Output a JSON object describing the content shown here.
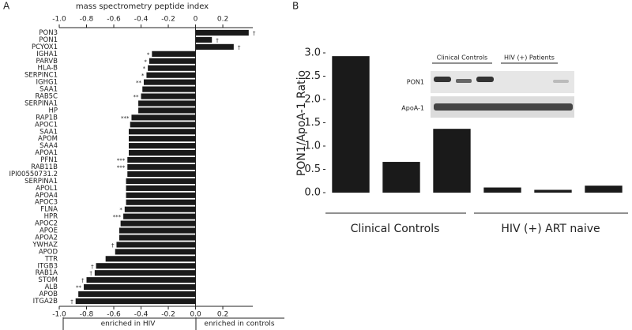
{
  "chart_data": [
    {
      "type": "barh",
      "label": "A",
      "title": "mass spectrometry peptide index",
      "categories": [
        "PON3",
        "PON1",
        "PCYOX1",
        "IGHA1",
        "PARVB",
        "HLA-B",
        "SERPINC1",
        "IGHG1",
        "SAA1",
        "RAB5C",
        "SERPINA1",
        "HP",
        "RAP1B",
        "APOC1",
        "SAA1",
        "APOM",
        "SAA4",
        "APOA1",
        "PFN1",
        "RAB11B",
        "IPI00550731.2",
        "SERPINA1",
        "APOL1",
        "APOA4",
        "APOC3",
        "FLNA",
        "HPR",
        "APOC2",
        "APOE",
        "APOA2",
        "YWHAZ",
        "APOD",
        "TTR",
        "ITGB3",
        "RAB1A",
        "STOM",
        "ALB",
        "APOB",
        "ITGA2B"
      ],
      "values": [
        0.39,
        0.12,
        0.28,
        -0.32,
        -0.34,
        -0.35,
        -0.36,
        -0.38,
        -0.39,
        -0.4,
        -0.42,
        -0.42,
        -0.47,
        -0.48,
        -0.49,
        -0.49,
        -0.49,
        -0.49,
        -0.5,
        -0.5,
        -0.5,
        -0.51,
        -0.51,
        -0.51,
        -0.51,
        -0.52,
        -0.53,
        -0.55,
        -0.56,
        -0.56,
        -0.58,
        -0.59,
        -0.66,
        -0.73,
        -0.74,
        -0.8,
        -0.82,
        -0.86,
        -0.88
      ],
      "markers": [
        "†",
        "†",
        "†",
        "*",
        "*",
        "*",
        "*",
        "**",
        null,
        "**",
        null,
        null,
        "***",
        null,
        null,
        null,
        null,
        null,
        "***",
        "***",
        null,
        null,
        null,
        null,
        null,
        "*",
        "***",
        null,
        null,
        null,
        "†",
        null,
        null,
        "†",
        "†",
        "†",
        "**",
        null,
        "†"
      ],
      "color": "#1a1a1a",
      "xlim": [
        -1.0,
        0.42
      ],
      "xticks": [
        {
          "value": -1.0,
          "label": "-1.0"
        },
        -0.8,
        -0.6,
        -0.4,
        -0.2,
        {
          "value": 0,
          "label": "0.0"
        },
        0.2
      ],
      "x2ticks": [
        {
          "value": -1.0,
          "label": "-1.0"
        },
        -0.8,
        -0.6,
        -0.4,
        -0.2,
        0,
        0.2
      ],
      "region_labels": [
        "enriched in HIV",
        "enriched in controls"
      ]
    },
    {
      "type": "bar",
      "label": "B",
      "ylabel": "PON1/ApoA-1 Ratio",
      "categories": [
        null,
        null,
        null,
        null,
        null,
        null
      ],
      "values": [
        2.93,
        0.66,
        1.37,
        0.11,
        0.06,
        0.15
      ],
      "color": "#1a1a1a",
      "ylim": [
        0,
        3.0
      ],
      "yticks": [
        {
          "value": 0,
          "label": "0.0"
        },
        0.5,
        {
          "value": 1,
          "label": "1.0"
        },
        1.5,
        {
          "value": 2,
          "label": "2.0"
        },
        2.5,
        {
          "value": 3,
          "label": "3.0"
        }
      ],
      "groups": [
        "Clinical Controls",
        "HIV (+) ART naive"
      ],
      "inset": {
        "groups": [
          "Clinical Controls",
          "HIV (+) Patients"
        ],
        "rows": [
          "PON1",
          "ApoA-1"
        ]
      }
    }
  ]
}
